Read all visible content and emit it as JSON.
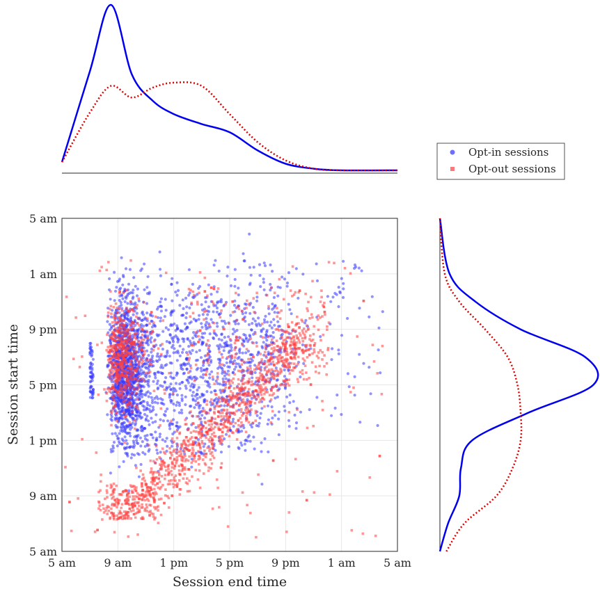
{
  "chart_data": [
    {
      "id": "scatter",
      "type": "scatter",
      "xlabel": "Session end time",
      "ylabel": "Session start time",
      "x_ticks": [
        "5 am",
        "9 am",
        "1 pm",
        "5 pm",
        "9 pm",
        "1 am",
        "5 am"
      ],
      "y_ticks": [
        "5 am",
        "9 am",
        "1 pm",
        "5 pm",
        "9 pm",
        "1 am",
        "5 am"
      ],
      "xlim": [
        "5 am",
        "5 am (+1 day)"
      ],
      "ylim": [
        "5 am",
        "5 am (+1 day)"
      ],
      "grid": true,
      "series": [
        {
          "name": "Opt-in sessions",
          "color": "#3a3aff",
          "marker": "circle",
          "approx_count": 2500,
          "description_points": [
            {
              "end": "7:30 am",
              "start": "5:30 pm"
            },
            {
              "end": "8:00 am",
              "start": "7:00 pm"
            },
            {
              "end": "8:30 am",
              "start": "6:00 pm"
            },
            {
              "end": "9:00 am",
              "start": "8:00 pm"
            },
            {
              "end": "10:00 am",
              "start": "7:00 pm"
            },
            {
              "end": "11:00 am",
              "start": "6:30 pm"
            },
            {
              "end": "1:00 pm",
              "start": "7:00 pm"
            },
            {
              "end": "2:30 pm",
              "start": "8:00 pm"
            },
            {
              "end": "4:00 pm",
              "start": "6:30 pm"
            },
            {
              "end": "5:30 pm",
              "start": "5:30 pm"
            },
            {
              "end": "7:00 pm",
              "start": "7:00 pm"
            },
            {
              "end": "8:00 pm",
              "start": "8:30 pm"
            }
          ]
        },
        {
          "name": "Opt-out sessions",
          "color": "#ff4040",
          "marker": "square",
          "approx_count": 2000,
          "description_points": [
            {
              "end": "8:30 am",
              "start": "7:30 am"
            },
            {
              "end": "10:00 am",
              "start": "9:00 am"
            },
            {
              "end": "11:30 am",
              "start": "10:30 am"
            },
            {
              "end": "1:00 pm",
              "start": "12:30 pm"
            },
            {
              "end": "2:30 pm",
              "start": "1:30 pm"
            },
            {
              "end": "4:00 pm",
              "start": "3:30 pm"
            },
            {
              "end": "5:30 pm",
              "start": "5:00 pm"
            },
            {
              "end": "8:00 am",
              "start": "7:00 pm"
            },
            {
              "end": "9:00 am",
              "start": "8:30 pm"
            },
            {
              "end": "7:00 pm",
              "start": "6:00 pm"
            }
          ]
        }
      ]
    },
    {
      "id": "top-density",
      "type": "line",
      "x_axis": "Session end time",
      "x": [
        "5 am",
        "7 am",
        "8:30 am",
        "10 am",
        "11:30 am",
        "1 pm",
        "3 pm",
        "5 pm",
        "7 pm",
        "9 pm",
        "11 pm",
        "1 am",
        "5 am"
      ],
      "series": [
        {
          "name": "Opt-in sessions",
          "line_style": "solid",
          "color": "#0000ee",
          "values": [
            0.05,
            0.6,
            1.0,
            0.58,
            0.42,
            0.34,
            0.28,
            0.23,
            0.12,
            0.04,
            0.01,
            0.0,
            0.0
          ]
        },
        {
          "name": "Opt-out sessions",
          "line_style": "dotted",
          "color": "#dd0000",
          "values": [
            0.05,
            0.35,
            0.51,
            0.44,
            0.5,
            0.53,
            0.51,
            0.34,
            0.17,
            0.06,
            0.01,
            0.0,
            0.0
          ]
        }
      ]
    },
    {
      "id": "right-density",
      "type": "line",
      "orientation": "vertical",
      "y_axis": "Session start time",
      "y": [
        "5 am",
        "7 am",
        "9 am",
        "11 am",
        "1 pm",
        "3 pm",
        "5 pm",
        "7 pm",
        "9 pm",
        "11 pm",
        "1 am",
        "5 am"
      ],
      "series": [
        {
          "name": "Opt-in sessions",
          "line_style": "solid",
          "color": "#0000ee",
          "values": [
            0.0,
            0.05,
            0.12,
            0.13,
            0.2,
            0.55,
            0.95,
            0.9,
            0.5,
            0.22,
            0.06,
            0.0
          ]
        },
        {
          "name": "Opt-out sessions",
          "line_style": "dotted",
          "color": "#dd0000",
          "values": [
            0.04,
            0.15,
            0.35,
            0.45,
            0.5,
            0.5,
            0.48,
            0.42,
            0.28,
            0.12,
            0.03,
            0.0
          ]
        }
      ]
    }
  ],
  "legend": {
    "placement": "right of top density",
    "entries": [
      {
        "label": "Opt-in sessions",
        "color": "#4a4aff",
        "marker": "circle"
      },
      {
        "label": "Opt-out sessions",
        "color": "#ff5555",
        "marker": "square"
      }
    ]
  }
}
